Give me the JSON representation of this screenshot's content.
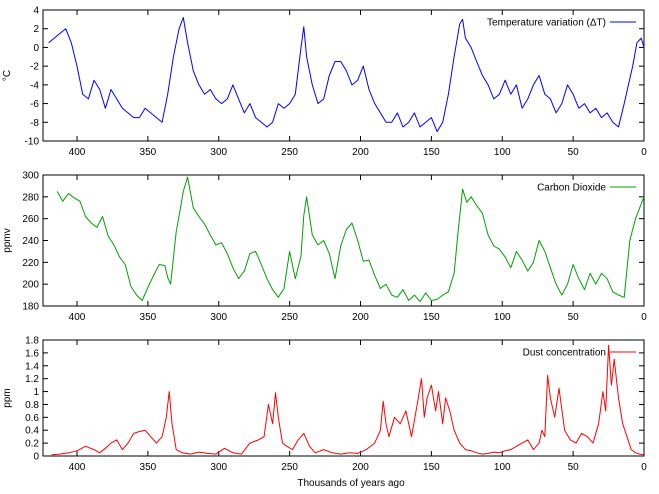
{
  "figure": {
    "xlabel": "Thousands of years ago"
  },
  "chart_data": [
    {
      "type": "line",
      "title": "",
      "xlabel": "",
      "ylabel": "°C",
      "xlim": [
        424,
        0
      ],
      "ylim": [
        -10,
        4
      ],
      "x_ticks": [
        400,
        350,
        300,
        250,
        200,
        150,
        100,
        50,
        0
      ],
      "y_ticks": [
        -10,
        -8,
        -6,
        -4,
        -2,
        0,
        2,
        4
      ],
      "grid": false,
      "legend_position": "top-right",
      "series": [
        {
          "name": "Temperature variation (ΔT)",
          "color": "#0000ff",
          "x": [
            420,
            416,
            412,
            408,
            404,
            400,
            396,
            392,
            388,
            384,
            380,
            376,
            372,
            368,
            364,
            360,
            356,
            352,
            348,
            344,
            340,
            336,
            332,
            328,
            325,
            322,
            318,
            314,
            310,
            306,
            302,
            298,
            294,
            290,
            286,
            282,
            278,
            274,
            270,
            266,
            262,
            258,
            254,
            250,
            246,
            242,
            240,
            238,
            234,
            230,
            226,
            222,
            218,
            214,
            210,
            206,
            202,
            198,
            194,
            190,
            186,
            182,
            178,
            174,
            170,
            166,
            162,
            158,
            154,
            150,
            146,
            142,
            138,
            134,
            130,
            128,
            126,
            122,
            118,
            114,
            110,
            106,
            102,
            98,
            94,
            90,
            86,
            82,
            78,
            74,
            70,
            66,
            62,
            58,
            54,
            50,
            46,
            42,
            38,
            34,
            30,
            26,
            22,
            18,
            14,
            11,
            8,
            5,
            2,
            0
          ],
          "y": [
            0.5,
            1.0,
            1.5,
            2.0,
            0.5,
            -2.0,
            -5.0,
            -5.5,
            -3.5,
            -4.5,
            -6.5,
            -4.5,
            -5.5,
            -6.5,
            -7.0,
            -7.5,
            -7.5,
            -6.5,
            -7.0,
            -7.5,
            -8.0,
            -5.0,
            -1.0,
            2.0,
            3.2,
            0.5,
            -2.5,
            -4.0,
            -5.0,
            -4.5,
            -5.5,
            -6.0,
            -5.5,
            -4.0,
            -5.5,
            -7.0,
            -6.0,
            -7.5,
            -8.0,
            -8.5,
            -8.0,
            -6.0,
            -6.5,
            -6.0,
            -5.0,
            0.0,
            2.2,
            -1.0,
            -4.0,
            -6.0,
            -5.5,
            -3.0,
            -1.5,
            -1.5,
            -2.5,
            -4.0,
            -3.5,
            -2.0,
            -4.5,
            -6.0,
            -7.0,
            -8.0,
            -8.0,
            -7.0,
            -8.5,
            -8.0,
            -7.0,
            -8.5,
            -8.0,
            -7.5,
            -9.0,
            -8.0,
            -5.0,
            -1.0,
            2.5,
            3.0,
            1.0,
            0.0,
            -1.5,
            -3.0,
            -4.0,
            -5.5,
            -5.0,
            -3.5,
            -5.0,
            -4.0,
            -6.5,
            -5.5,
            -4.0,
            -3.0,
            -5.0,
            -5.5,
            -7.0,
            -6.0,
            -4.0,
            -5.0,
            -6.5,
            -6.0,
            -7.0,
            -6.5,
            -7.5,
            -7.0,
            -8.0,
            -8.5,
            -6.0,
            -4.0,
            -2.0,
            0.5,
            1.0,
            0.0
          ]
        }
      ]
    },
    {
      "type": "line",
      "title": "",
      "xlabel": "",
      "ylabel": "ppmv",
      "xlim": [
        424,
        0
      ],
      "ylim": [
        180,
        300
      ],
      "x_ticks": [
        400,
        350,
        300,
        250,
        200,
        150,
        100,
        50,
        0
      ],
      "y_ticks": [
        180,
        200,
        220,
        240,
        260,
        280,
        300
      ],
      "grid": false,
      "legend_position": "top-right",
      "series": [
        {
          "name": "Carbon Dioxide",
          "color": "#00a000",
          "x": [
            414,
            410,
            406,
            402,
            398,
            394,
            390,
            386,
            382,
            378,
            374,
            370,
            366,
            362,
            358,
            354,
            350,
            346,
            342,
            338,
            336,
            334,
            330,
            327,
            325,
            322,
            318,
            314,
            310,
            306,
            302,
            298,
            294,
            290,
            286,
            282,
            278,
            274,
            270,
            266,
            262,
            258,
            254,
            250,
            246,
            242,
            240,
            238,
            234,
            230,
            226,
            222,
            218,
            214,
            210,
            206,
            202,
            198,
            194,
            190,
            186,
            182,
            178,
            174,
            170,
            166,
            162,
            158,
            154,
            150,
            146,
            142,
            138,
            134,
            131,
            128,
            125,
            122,
            118,
            114,
            110,
            106,
            102,
            98,
            94,
            90,
            86,
            82,
            78,
            74,
            70,
            66,
            62,
            58,
            54,
            50,
            46,
            42,
            38,
            34,
            30,
            26,
            22,
            18,
            14,
            10,
            6,
            3,
            0
          ],
          "y": [
            285,
            276,
            283,
            279,
            276,
            262,
            256,
            252,
            262,
            244,
            236,
            225,
            218,
            198,
            190,
            185,
            197,
            208,
            218,
            217,
            206,
            200,
            248,
            270,
            285,
            298,
            270,
            262,
            255,
            245,
            236,
            238,
            228,
            215,
            205,
            212,
            228,
            230,
            218,
            205,
            195,
            188,
            196,
            230,
            205,
            226,
            263,
            280,
            245,
            236,
            240,
            228,
            205,
            235,
            250,
            256,
            240,
            221,
            222,
            208,
            196,
            200,
            190,
            188,
            195,
            185,
            190,
            184,
            192,
            185,
            186,
            190,
            193,
            210,
            250,
            287,
            275,
            280,
            272,
            265,
            245,
            235,
            232,
            225,
            215,
            230,
            222,
            212,
            220,
            240,
            230,
            215,
            200,
            190,
            200,
            218,
            205,
            195,
            210,
            200,
            210,
            205,
            193,
            190,
            188,
            240,
            260,
            270,
            280
          ]
        }
      ]
    },
    {
      "type": "line",
      "title": "",
      "xlabel": "",
      "ylabel": "ppm",
      "xlim": [
        424,
        0
      ],
      "ylim": [
        0,
        1.8
      ],
      "x_ticks": [
        400,
        350,
        300,
        250,
        200,
        150,
        100,
        50,
        0
      ],
      "y_ticks": [
        0,
        0.2,
        0.4,
        0.6,
        0.8,
        1,
        1.2,
        1.4,
        1.6,
        1.8
      ],
      "grid": false,
      "legend_position": "top-right",
      "series": [
        {
          "name": "Dust concentration",
          "color": "#ff0000",
          "x": [
            418,
            412,
            406,
            400,
            394,
            388,
            384,
            380,
            376,
            372,
            368,
            364,
            360,
            356,
            352,
            348,
            344,
            340,
            337,
            335,
            333,
            330,
            326,
            320,
            314,
            308,
            302,
            296,
            290,
            284,
            278,
            272,
            268,
            265,
            262,
            260,
            258,
            255,
            252,
            248,
            244,
            240,
            236,
            232,
            226,
            220,
            214,
            208,
            202,
            196,
            190,
            186,
            184,
            182,
            180,
            176,
            172,
            168,
            164,
            160,
            157,
            155,
            153,
            150,
            147,
            145,
            142,
            140,
            137,
            134,
            130,
            126,
            122,
            118,
            114,
            110,
            106,
            102,
            98,
            94,
            90,
            86,
            82,
            78,
            74,
            72,
            70,
            68,
            66,
            63,
            60,
            56,
            52,
            48,
            44,
            40,
            36,
            32,
            29,
            27,
            25,
            23,
            21,
            18,
            15,
            12,
            9,
            6,
            3,
            0
          ],
          "y": [
            0.02,
            0.03,
            0.05,
            0.08,
            0.15,
            0.1,
            0.05,
            0.12,
            0.2,
            0.25,
            0.1,
            0.2,
            0.35,
            0.38,
            0.4,
            0.3,
            0.2,
            0.3,
            0.6,
            1.0,
            0.5,
            0.1,
            0.05,
            0.03,
            0.06,
            0.04,
            0.03,
            0.12,
            0.05,
            0.03,
            0.2,
            0.25,
            0.3,
            0.8,
            0.5,
            0.98,
            0.6,
            0.2,
            0.15,
            0.1,
            0.25,
            0.35,
            0.15,
            0.05,
            0.1,
            0.05,
            0.03,
            0.05,
            0.04,
            0.1,
            0.2,
            0.4,
            0.85,
            0.5,
            0.3,
            0.6,
            0.5,
            0.7,
            0.3,
            0.8,
            1.2,
            0.6,
            0.9,
            1.1,
            0.7,
            1.0,
            0.5,
            0.9,
            0.7,
            0.4,
            0.2,
            0.1,
            0.08,
            0.05,
            0.03,
            0.04,
            0.06,
            0.05,
            0.08,
            0.1,
            0.15,
            0.2,
            0.25,
            0.1,
            0.2,
            0.4,
            0.3,
            1.25,
            0.9,
            0.6,
            1.05,
            0.4,
            0.25,
            0.2,
            0.35,
            0.3,
            0.2,
            0.5,
            1.0,
            0.7,
            1.72,
            1.1,
            1.5,
            0.9,
            0.5,
            0.3,
            0.1,
            0.05,
            0.03,
            0.02
          ]
        }
      ]
    }
  ]
}
